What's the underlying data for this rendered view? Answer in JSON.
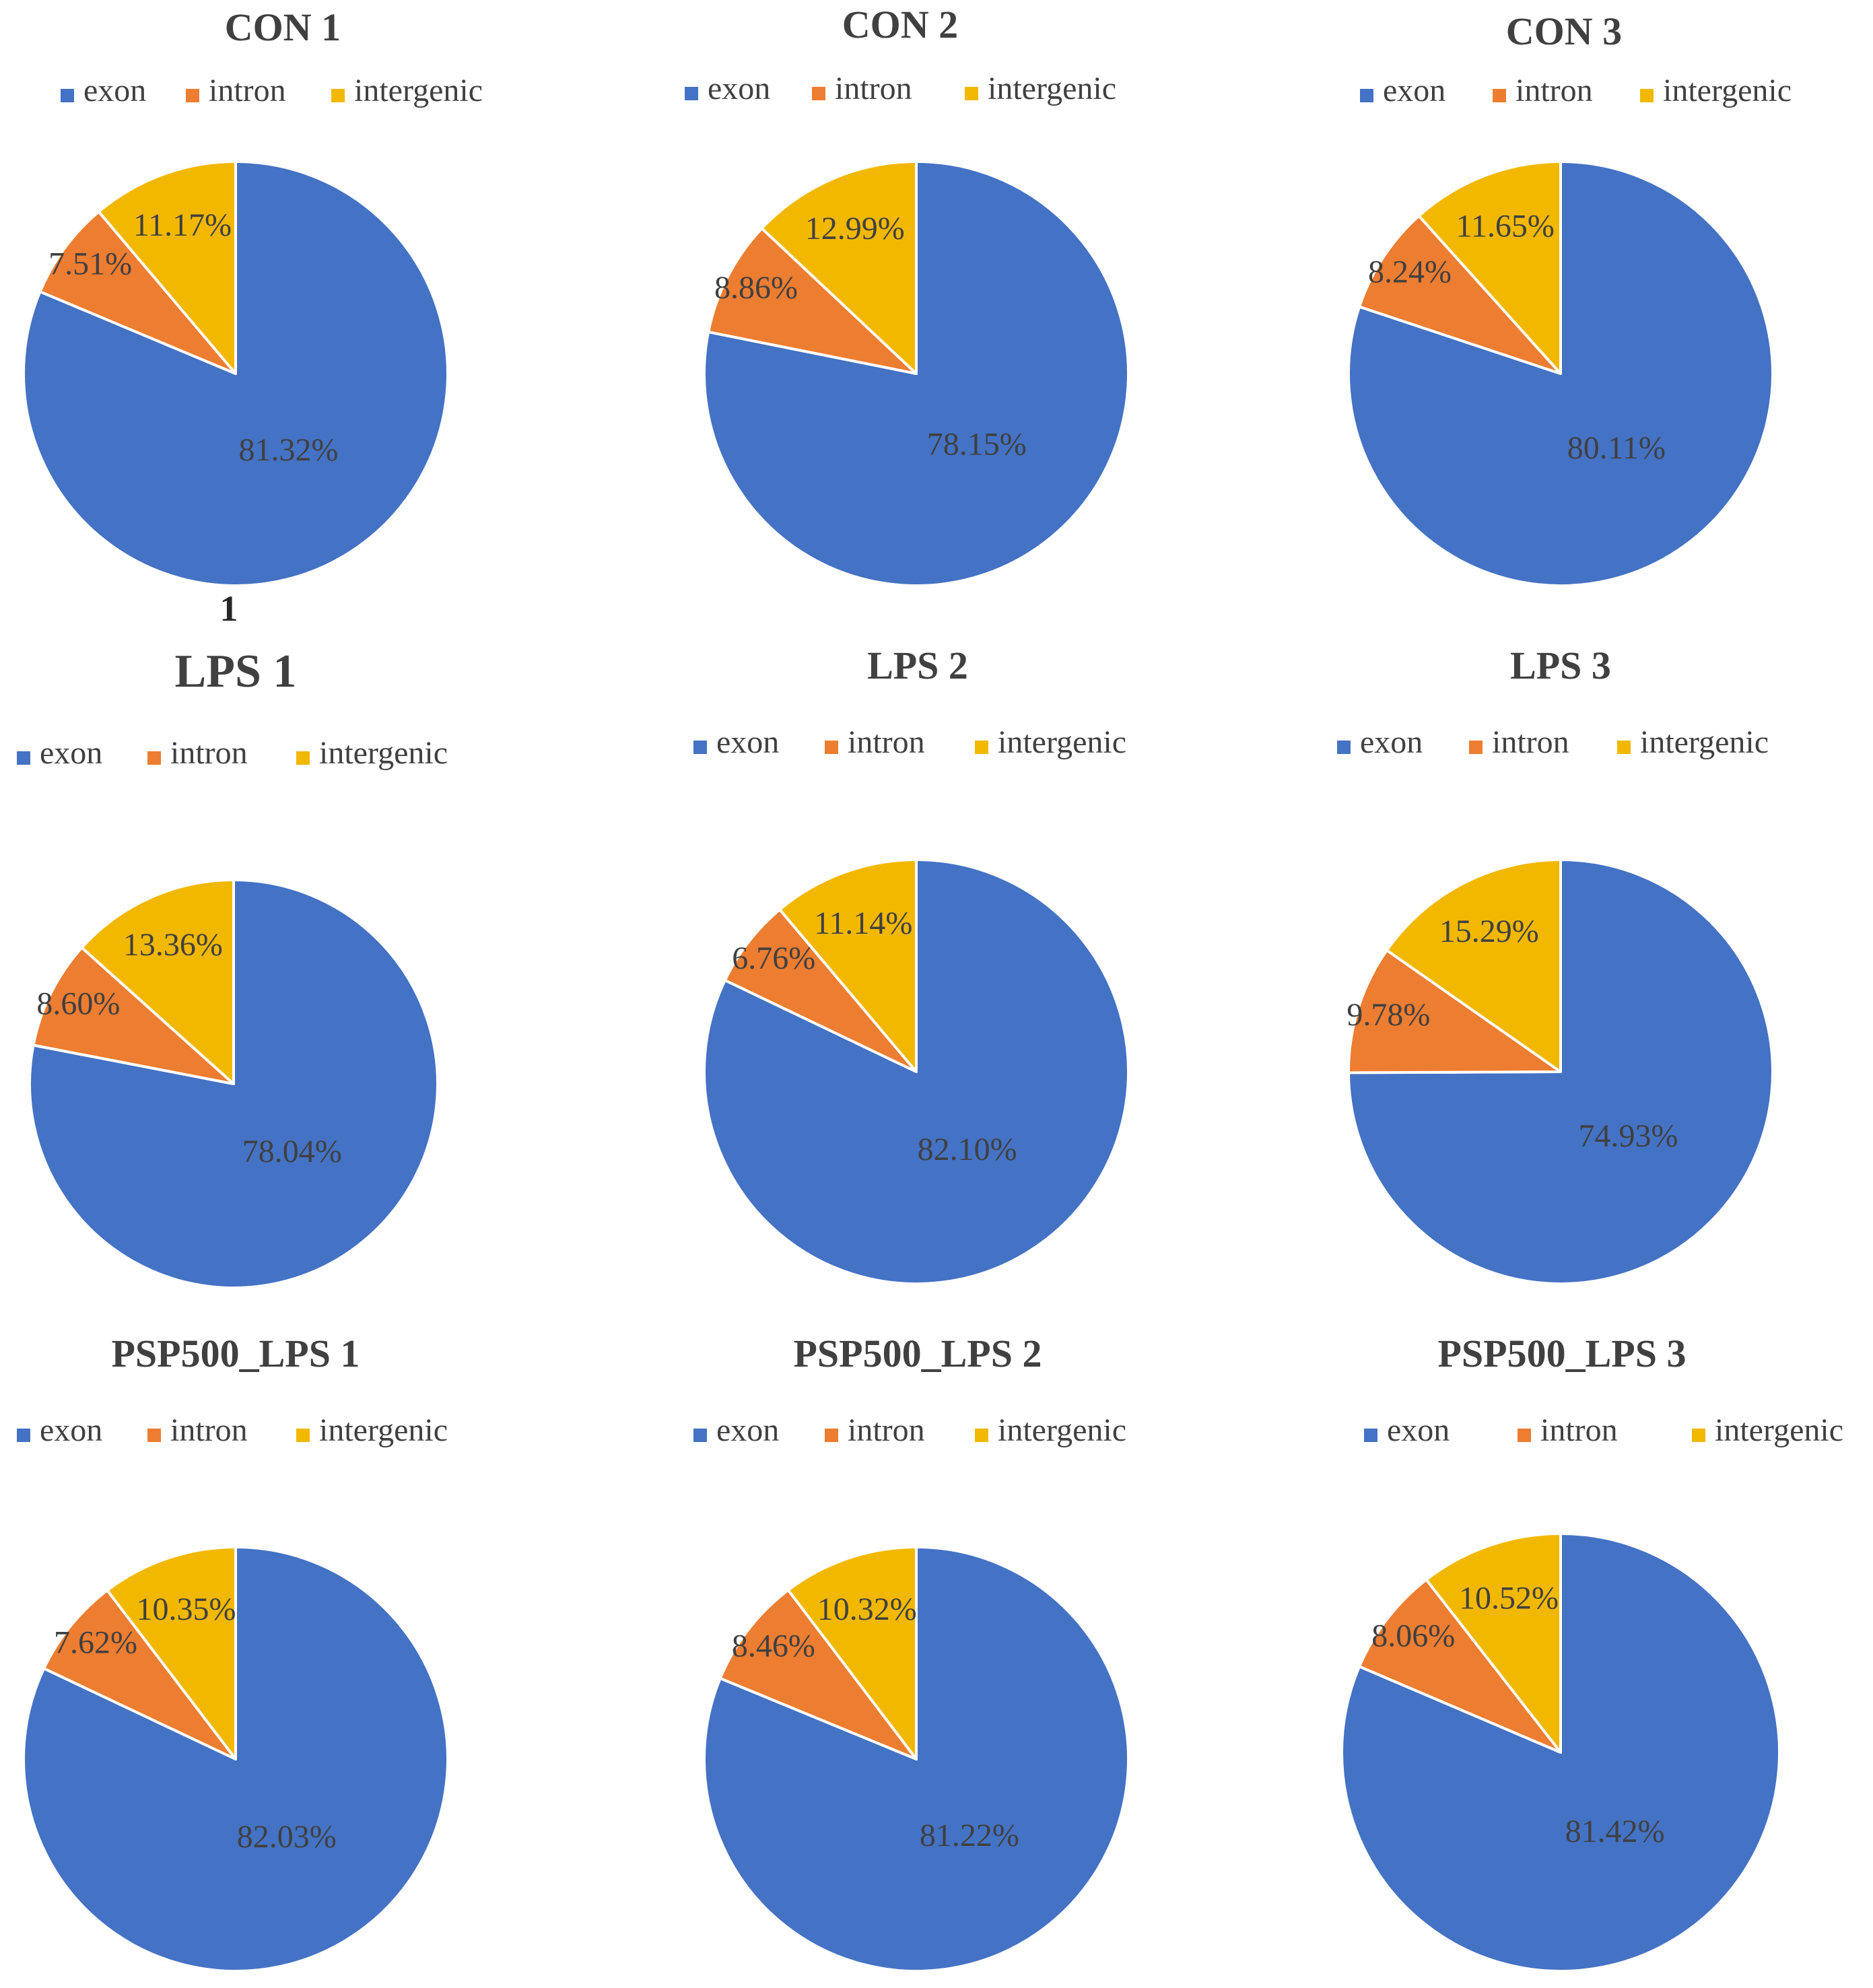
{
  "colors": {
    "exon": "#4472C4",
    "intron": "#ED7D31",
    "intergenic": "#F2B800",
    "text": "#404040",
    "slice_border": "#FFFFFF"
  },
  "legend": [
    "exon",
    "intron",
    "intergenic"
  ],
  "stray_label": "1",
  "chart_data": [
    {
      "type": "pie",
      "title": "CON 1",
      "categories": [
        "exon",
        "intron",
        "intergenic"
      ],
      "values": [
        81.32,
        7.51,
        11.17
      ],
      "labels": [
        "81.32%",
        "7.51%",
        "11.17%"
      ]
    },
    {
      "type": "pie",
      "title": "CON 2",
      "categories": [
        "exon",
        "intron",
        "intergenic"
      ],
      "values": [
        78.15,
        8.86,
        12.99
      ],
      "labels": [
        "78.15%",
        "8.86%",
        "12.99%"
      ]
    },
    {
      "type": "pie",
      "title": "CON 3",
      "categories": [
        "exon",
        "intron",
        "intergenic"
      ],
      "values": [
        80.11,
        8.24,
        11.65
      ],
      "labels": [
        "80.11%",
        "8.24%",
        "11.65%"
      ]
    },
    {
      "type": "pie",
      "title": "LPS 1",
      "categories": [
        "exon",
        "intron",
        "intergenic"
      ],
      "values": [
        78.04,
        8.6,
        13.36
      ],
      "labels": [
        "78.04%",
        "8.60%",
        "13.36%"
      ]
    },
    {
      "type": "pie",
      "title": "LPS 2",
      "categories": [
        "exon",
        "intron",
        "intergenic"
      ],
      "values": [
        82.1,
        6.76,
        11.14
      ],
      "labels": [
        "82.10%",
        "6.76%",
        "11.14%"
      ]
    },
    {
      "type": "pie",
      "title": "LPS 3",
      "categories": [
        "exon",
        "intron",
        "intergenic"
      ],
      "values": [
        74.93,
        9.78,
        15.29
      ],
      "labels": [
        "74.93%",
        "9.78%",
        "15.29%"
      ]
    },
    {
      "type": "pie",
      "title": "PSP500_LPS 1",
      "categories": [
        "exon",
        "intron",
        "intergenic"
      ],
      "values": [
        82.03,
        7.62,
        10.35
      ],
      "labels": [
        "82.03%",
        "7.62%",
        "10.35%"
      ]
    },
    {
      "type": "pie",
      "title": "PSP500_LPS 2",
      "categories": [
        "exon",
        "intron",
        "intergenic"
      ],
      "values": [
        81.22,
        8.46,
        10.32
      ],
      "labels": [
        "81.22%",
        "8.46%",
        "10.32%"
      ]
    },
    {
      "type": "pie",
      "title": "PSP500_LPS 3",
      "categories": [
        "exon",
        "intron",
        "intergenic"
      ],
      "values": [
        81.42,
        8.06,
        10.52
      ],
      "labels": [
        "81.42%",
        "8.06%",
        "10.52%"
      ]
    }
  ]
}
